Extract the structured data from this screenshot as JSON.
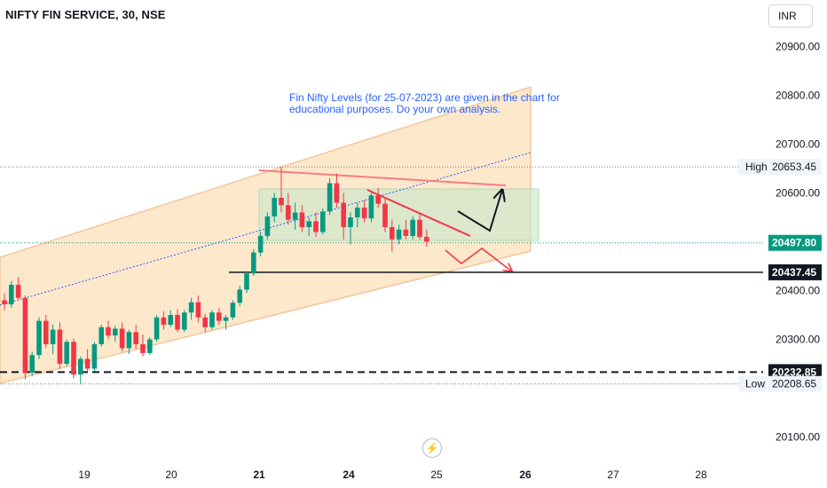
{
  "header": {
    "title": "NIFTY FIN SERVICE, 30, NSE",
    "currency": "INR"
  },
  "annotation_text": "Fin Nifty Levels (for 25-07-2023) are given in the chart for educational purposes. Do your own analysis.",
  "colors": {
    "up": "#089981",
    "down": "#f23645",
    "channel_fill": "#fde4c3",
    "box_fill": "#c8e6c9",
    "trendline": "#f77c80",
    "midline": "#2962ff"
  },
  "chart_data": {
    "type": "candlestick",
    "title": "NIFTY FIN SERVICE, 30, NSE",
    "y_range": [
      20050,
      20990
    ],
    "y_ticks": [
      20900,
      20800,
      20700,
      20600,
      20400,
      20300,
      20100
    ],
    "x_tick_labels": [
      "19",
      "20",
      "21",
      "24",
      "25",
      "26",
      "27",
      "28"
    ],
    "price_labels": [
      {
        "label": "High",
        "value": "20653.45"
      },
      {
        "label": "",
        "value": "20497.80"
      },
      {
        "label": "",
        "value": "20437.45"
      },
      {
        "label": "",
        "value": "20232.85"
      },
      {
        "label": "Low",
        "value": "20208.65"
      }
    ],
    "levels": [
      20437.45,
      20232.85
    ],
    "candles": [
      [
        20380,
        20395,
        20360,
        20372
      ],
      [
        20372,
        20420,
        20365,
        20412
      ],
      [
        20412,
        20428,
        20380,
        20385
      ],
      [
        20385,
        20390,
        20218,
        20232
      ],
      [
        20232,
        20275,
        20225,
        20268
      ],
      [
        20268,
        20345,
        20260,
        20338
      ],
      [
        20338,
        20350,
        20282,
        20290
      ],
      [
        20290,
        20330,
        20270,
        20320
      ],
      [
        20320,
        20335,
        20240,
        20250
      ],
      [
        20250,
        20300,
        20245,
        20295
      ],
      [
        20295,
        20302,
        20220,
        20228
      ],
      [
        20228,
        20265,
        20208,
        20260
      ],
      [
        20260,
        20280,
        20235,
        20240
      ],
      [
        20240,
        20295,
        20235,
        20290
      ],
      [
        20290,
        20330,
        20285,
        20325
      ],
      [
        20325,
        20338,
        20300,
        20308
      ],
      [
        20308,
        20328,
        20295,
        20322
      ],
      [
        20322,
        20335,
        20275,
        20282
      ],
      [
        20282,
        20320,
        20270,
        20315
      ],
      [
        20315,
        20330,
        20280,
        20290
      ],
      [
        20290,
        20310,
        20265,
        20272
      ],
      [
        20272,
        20305,
        20268,
        20300
      ],
      [
        20300,
        20350,
        20295,
        20345
      ],
      [
        20345,
        20358,
        20320,
        20330
      ],
      [
        20330,
        20360,
        20325,
        20350
      ],
      [
        20350,
        20362,
        20315,
        20320
      ],
      [
        20320,
        20360,
        20315,
        20355
      ],
      [
        20355,
        20385,
        20340,
        20376
      ],
      [
        20376,
        20390,
        20335,
        20345
      ],
      [
        20345,
        20352,
        20315,
        20325
      ],
      [
        20325,
        20360,
        20320,
        20355
      ],
      [
        20355,
        20365,
        20330,
        20338
      ],
      [
        20338,
        20350,
        20320,
        20345
      ],
      [
        20345,
        20380,
        20340,
        20375
      ],
      [
        20375,
        20410,
        20368,
        20402
      ],
      [
        20402,
        20440,
        20395,
        20435
      ],
      [
        20435,
        20485,
        20430,
        20478
      ],
      [
        20478,
        20520,
        20470,
        20512
      ],
      [
        20512,
        20560,
        20505,
        20552
      ],
      [
        20552,
        20600,
        20540,
        20590
      ],
      [
        20590,
        20653,
        20560,
        20575
      ],
      [
        20575,
        20600,
        20535,
        20545
      ],
      [
        20545,
        20580,
        20525,
        20560
      ],
      [
        20560,
        20575,
        20520,
        20530
      ],
      [
        20530,
        20550,
        20512,
        20542
      ],
      [
        20542,
        20560,
        20510,
        20520
      ],
      [
        20520,
        20568,
        20515,
        20562
      ],
      [
        20562,
        20630,
        20555,
        20620
      ],
      [
        20620,
        20640,
        20570,
        20580
      ],
      [
        20580,
        20600,
        20505,
        20530
      ],
      [
        20530,
        20560,
        20495,
        20550
      ],
      [
        20550,
        20580,
        20530,
        20570
      ],
      [
        20570,
        20585,
        20540,
        20548
      ],
      [
        20548,
        20600,
        20540,
        20595
      ],
      [
        20595,
        20610,
        20570,
        20578
      ],
      [
        20578,
        20590,
        20520,
        20530
      ],
      [
        20530,
        20545,
        20480,
        20505
      ],
      [
        20505,
        20535,
        20495,
        20525
      ],
      [
        20525,
        20545,
        20505,
        20512
      ],
      [
        20512,
        20552,
        20505,
        20545
      ],
      [
        20545,
        20560,
        20505,
        20510
      ],
      [
        20510,
        20525,
        20490,
        20500
      ]
    ]
  }
}
